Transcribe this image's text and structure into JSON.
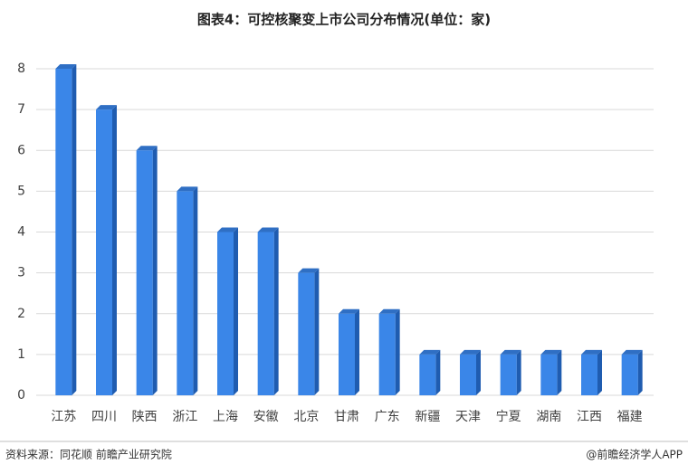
{
  "chart_data": {
    "type": "bar3d",
    "title": "图表4：可控核聚变上市公司分布情况(单位：家)",
    "categories": [
      "江苏",
      "四川",
      "陕西",
      "浙江",
      "上海",
      "安徽",
      "北京",
      "甘肃",
      "广东",
      "新疆",
      "天津",
      "宁夏",
      "湖南",
      "江西",
      "福建"
    ],
    "values": [
      8,
      7,
      6,
      5,
      4,
      4,
      3,
      2,
      2,
      1,
      1,
      1,
      1,
      1,
      1
    ],
    "color": "#3a86e8",
    "ylim": [
      0,
      8
    ],
    "yticks": [
      0,
      1,
      2,
      3,
      4,
      5,
      6,
      7,
      8
    ],
    "grid": true,
    "source": "资料来源：同花顺 前瞻产业研究院",
    "credit": "@前瞻经济学人APP"
  }
}
